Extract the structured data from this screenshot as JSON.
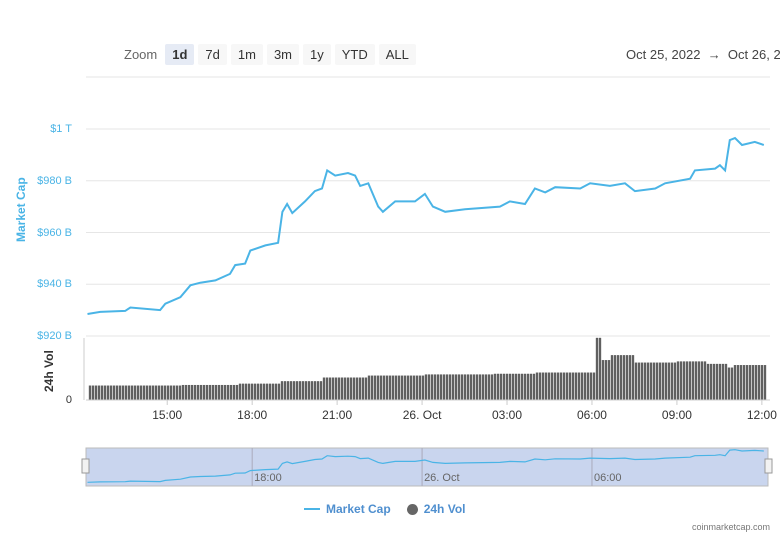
{
  "toolbar": {
    "zoom_label": "Zoom",
    "buttons": [
      "1d",
      "7d",
      "1m",
      "3m",
      "1y",
      "YTD",
      "ALL"
    ],
    "selected": "1d"
  },
  "date_range": {
    "from": "Oct 25, 2022",
    "arrow": "→",
    "to": "Oct 26, 2"
  },
  "colors": {
    "market_cap": "#4ab4e6",
    "volume": "#555555",
    "navigator_bg": "#c9d5ee"
  },
  "chart_data": {
    "type": "line",
    "title": "",
    "yaxis": {
      "label": "Market Cap",
      "ticks": [
        "$920 B",
        "$940 B",
        "$960 B",
        "$980 B",
        "$1 T"
      ],
      "tick_values": [
        920,
        940,
        960,
        980,
        1000
      ],
      "range": [
        920,
        1000
      ],
      "unit": "B USD"
    },
    "volume_axis": {
      "label": "24h Vol",
      "ticks": [
        "0"
      ]
    },
    "xaxis": {
      "ticks": [
        "15:00",
        "18:00",
        "21:00",
        "26. Oct",
        "03:00",
        "06:00",
        "09:00",
        "12:00"
      ],
      "tick_times": [
        "2022-10-25T15:00",
        "2022-10-25T18:00",
        "2022-10-25T21:00",
        "2022-10-26T00:00",
        "2022-10-26T03:00",
        "2022-10-26T06:00",
        "2022-10-26T09:00",
        "2022-10-26T12:00"
      ],
      "range": [
        "2022-10-25T12:10",
        "2022-10-26T12:13"
      ]
    },
    "navigator_ticks": [
      "18:00",
      "26. Oct",
      "06:00"
    ],
    "navigator_tick_times": [
      "2022-10-25T18:00",
      "2022-10-26T00:00",
      "2022-10-26T06:00"
    ],
    "grid": true,
    "legend": {
      "placement": "bottom",
      "items": [
        "Market Cap",
        "24h Vol"
      ]
    },
    "market_cap": [
      [
        "2022-10-25T12:11",
        928.5
      ],
      [
        "2022-10-25T12:38",
        929.3
      ],
      [
        "2022-10-25T13:31",
        929.7
      ],
      [
        "2022-10-25T13:42",
        931
      ],
      [
        "2022-10-25T14:45",
        930
      ],
      [
        "2022-10-25T14:56",
        932.5
      ],
      [
        "2022-10-25T15:28",
        935
      ],
      [
        "2022-10-25T15:49",
        939.6
      ],
      [
        "2022-10-25T16:10",
        940.6
      ],
      [
        "2022-10-25T16:42",
        941.5
      ],
      [
        "2022-10-25T17:13",
        944
      ],
      [
        "2022-10-25T17:24",
        947.4
      ],
      [
        "2022-10-25T17:45",
        948
      ],
      [
        "2022-10-25T17:56",
        953
      ],
      [
        "2022-10-25T18:28",
        955
      ],
      [
        "2022-10-25T18:55",
        956
      ],
      [
        "2022-10-25T19:04",
        968
      ],
      [
        "2022-10-25T19:14",
        971
      ],
      [
        "2022-10-25T19:25",
        967.5
      ],
      [
        "2022-10-25T19:52",
        972
      ],
      [
        "2022-10-25T20:13",
        976
      ],
      [
        "2022-10-25T20:28",
        977
      ],
      [
        "2022-10-25T20:39",
        984
      ],
      [
        "2022-10-25T20:56",
        982
      ],
      [
        "2022-10-25T21:23",
        983
      ],
      [
        "2022-10-25T21:38",
        982
      ],
      [
        "2022-10-25T21:49",
        978
      ],
      [
        "2022-10-25T22:06",
        979
      ],
      [
        "2022-10-25T22:27",
        970
      ],
      [
        "2022-10-25T22:37",
        968
      ],
      [
        "2022-10-25T23:03",
        972
      ],
      [
        "2022-10-25T23:45",
        972
      ],
      [
        "2022-10-26T00:06",
        974.9
      ],
      [
        "2022-10-26T00:23",
        970
      ],
      [
        "2022-10-26T00:49",
        968
      ],
      [
        "2022-10-26T01:31",
        969
      ],
      [
        "2022-10-26T02:45",
        970
      ],
      [
        "2022-10-26T03:06",
        972
      ],
      [
        "2022-10-26T03:38",
        971
      ],
      [
        "2022-10-26T03:59",
        977
      ],
      [
        "2022-10-26T04:21",
        975.5
      ],
      [
        "2022-10-26T04:42",
        977.5
      ],
      [
        "2022-10-26T05:35",
        977
      ],
      [
        "2022-10-26T05:56",
        979
      ],
      [
        "2022-10-26T06:38",
        978
      ],
      [
        "2022-10-26T07:10",
        979
      ],
      [
        "2022-10-26T07:31",
        976
      ],
      [
        "2022-10-26T08:14",
        977
      ],
      [
        "2022-10-26T08:35",
        979
      ],
      [
        "2022-10-26T09:28",
        980.8
      ],
      [
        "2022-10-26T09:38",
        984
      ],
      [
        "2022-10-26T10:21",
        984.7
      ],
      [
        "2022-10-26T10:31",
        986
      ],
      [
        "2022-10-26T10:42",
        984
      ],
      [
        "2022-10-26T10:52",
        995.7
      ],
      [
        "2022-10-26T11:03",
        996.5
      ],
      [
        "2022-10-26T11:18",
        993.8
      ],
      [
        "2022-10-26T11:45",
        995
      ],
      [
        "2022-10-26T12:04",
        993.8
      ]
    ],
    "volume_relative": [
      [
        "2022-10-25T12:11",
        23
      ],
      [
        "2022-10-25T15:30",
        24
      ],
      [
        "2022-10-25T17:30",
        26
      ],
      [
        "2022-10-25T19:00",
        30
      ],
      [
        "2022-10-25T20:30",
        36
      ],
      [
        "2022-10-25T22:00",
        39
      ],
      [
        "2022-10-26T00:00",
        41
      ],
      [
        "2022-10-26T02:30",
        42
      ],
      [
        "2022-10-26T04:00",
        44
      ],
      [
        "2022-10-26T06:05",
        100
      ],
      [
        "2022-10-26T06:20",
        64
      ],
      [
        "2022-10-26T06:40",
        72
      ],
      [
        "2022-10-26T07:30",
        60
      ],
      [
        "2022-10-26T09:00",
        62
      ],
      [
        "2022-10-26T10:00",
        58
      ],
      [
        "2022-10-26T10:45",
        52
      ],
      [
        "2022-10-26T11:00",
        56
      ],
      [
        "2022-10-26T12:13",
        56
      ]
    ]
  },
  "credit": "coinmarketcap.com"
}
